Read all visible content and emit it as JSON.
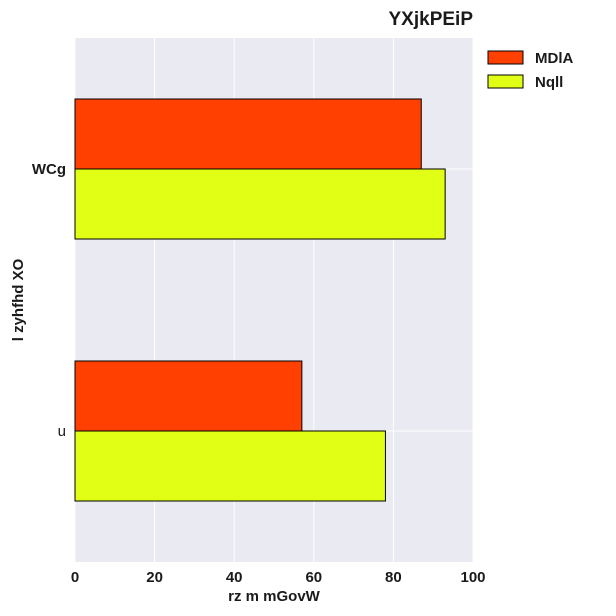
{
  "chart_data": {
    "type": "bar",
    "orientation": "horizontal",
    "title": "YXjkPEiP",
    "xlabel": "rz m mGovW",
    "ylabel": "l zyhfhd XO",
    "categories": [
      "WCg",
      "u"
    ],
    "series": [
      {
        "name": "MDlA",
        "values": [
          87,
          57
        ],
        "color": "#ff4000"
      },
      {
        "name": "Nqll",
        "values": [
          93,
          78
        ],
        "color": "#e1ff14"
      }
    ],
    "xlim": [
      0,
      100
    ],
    "xticks": [
      "0",
      "20",
      "40",
      "60",
      "80",
      "100"
    ],
    "grid": true,
    "legend": "top-right",
    "plot_background": "#e9eaf2"
  }
}
